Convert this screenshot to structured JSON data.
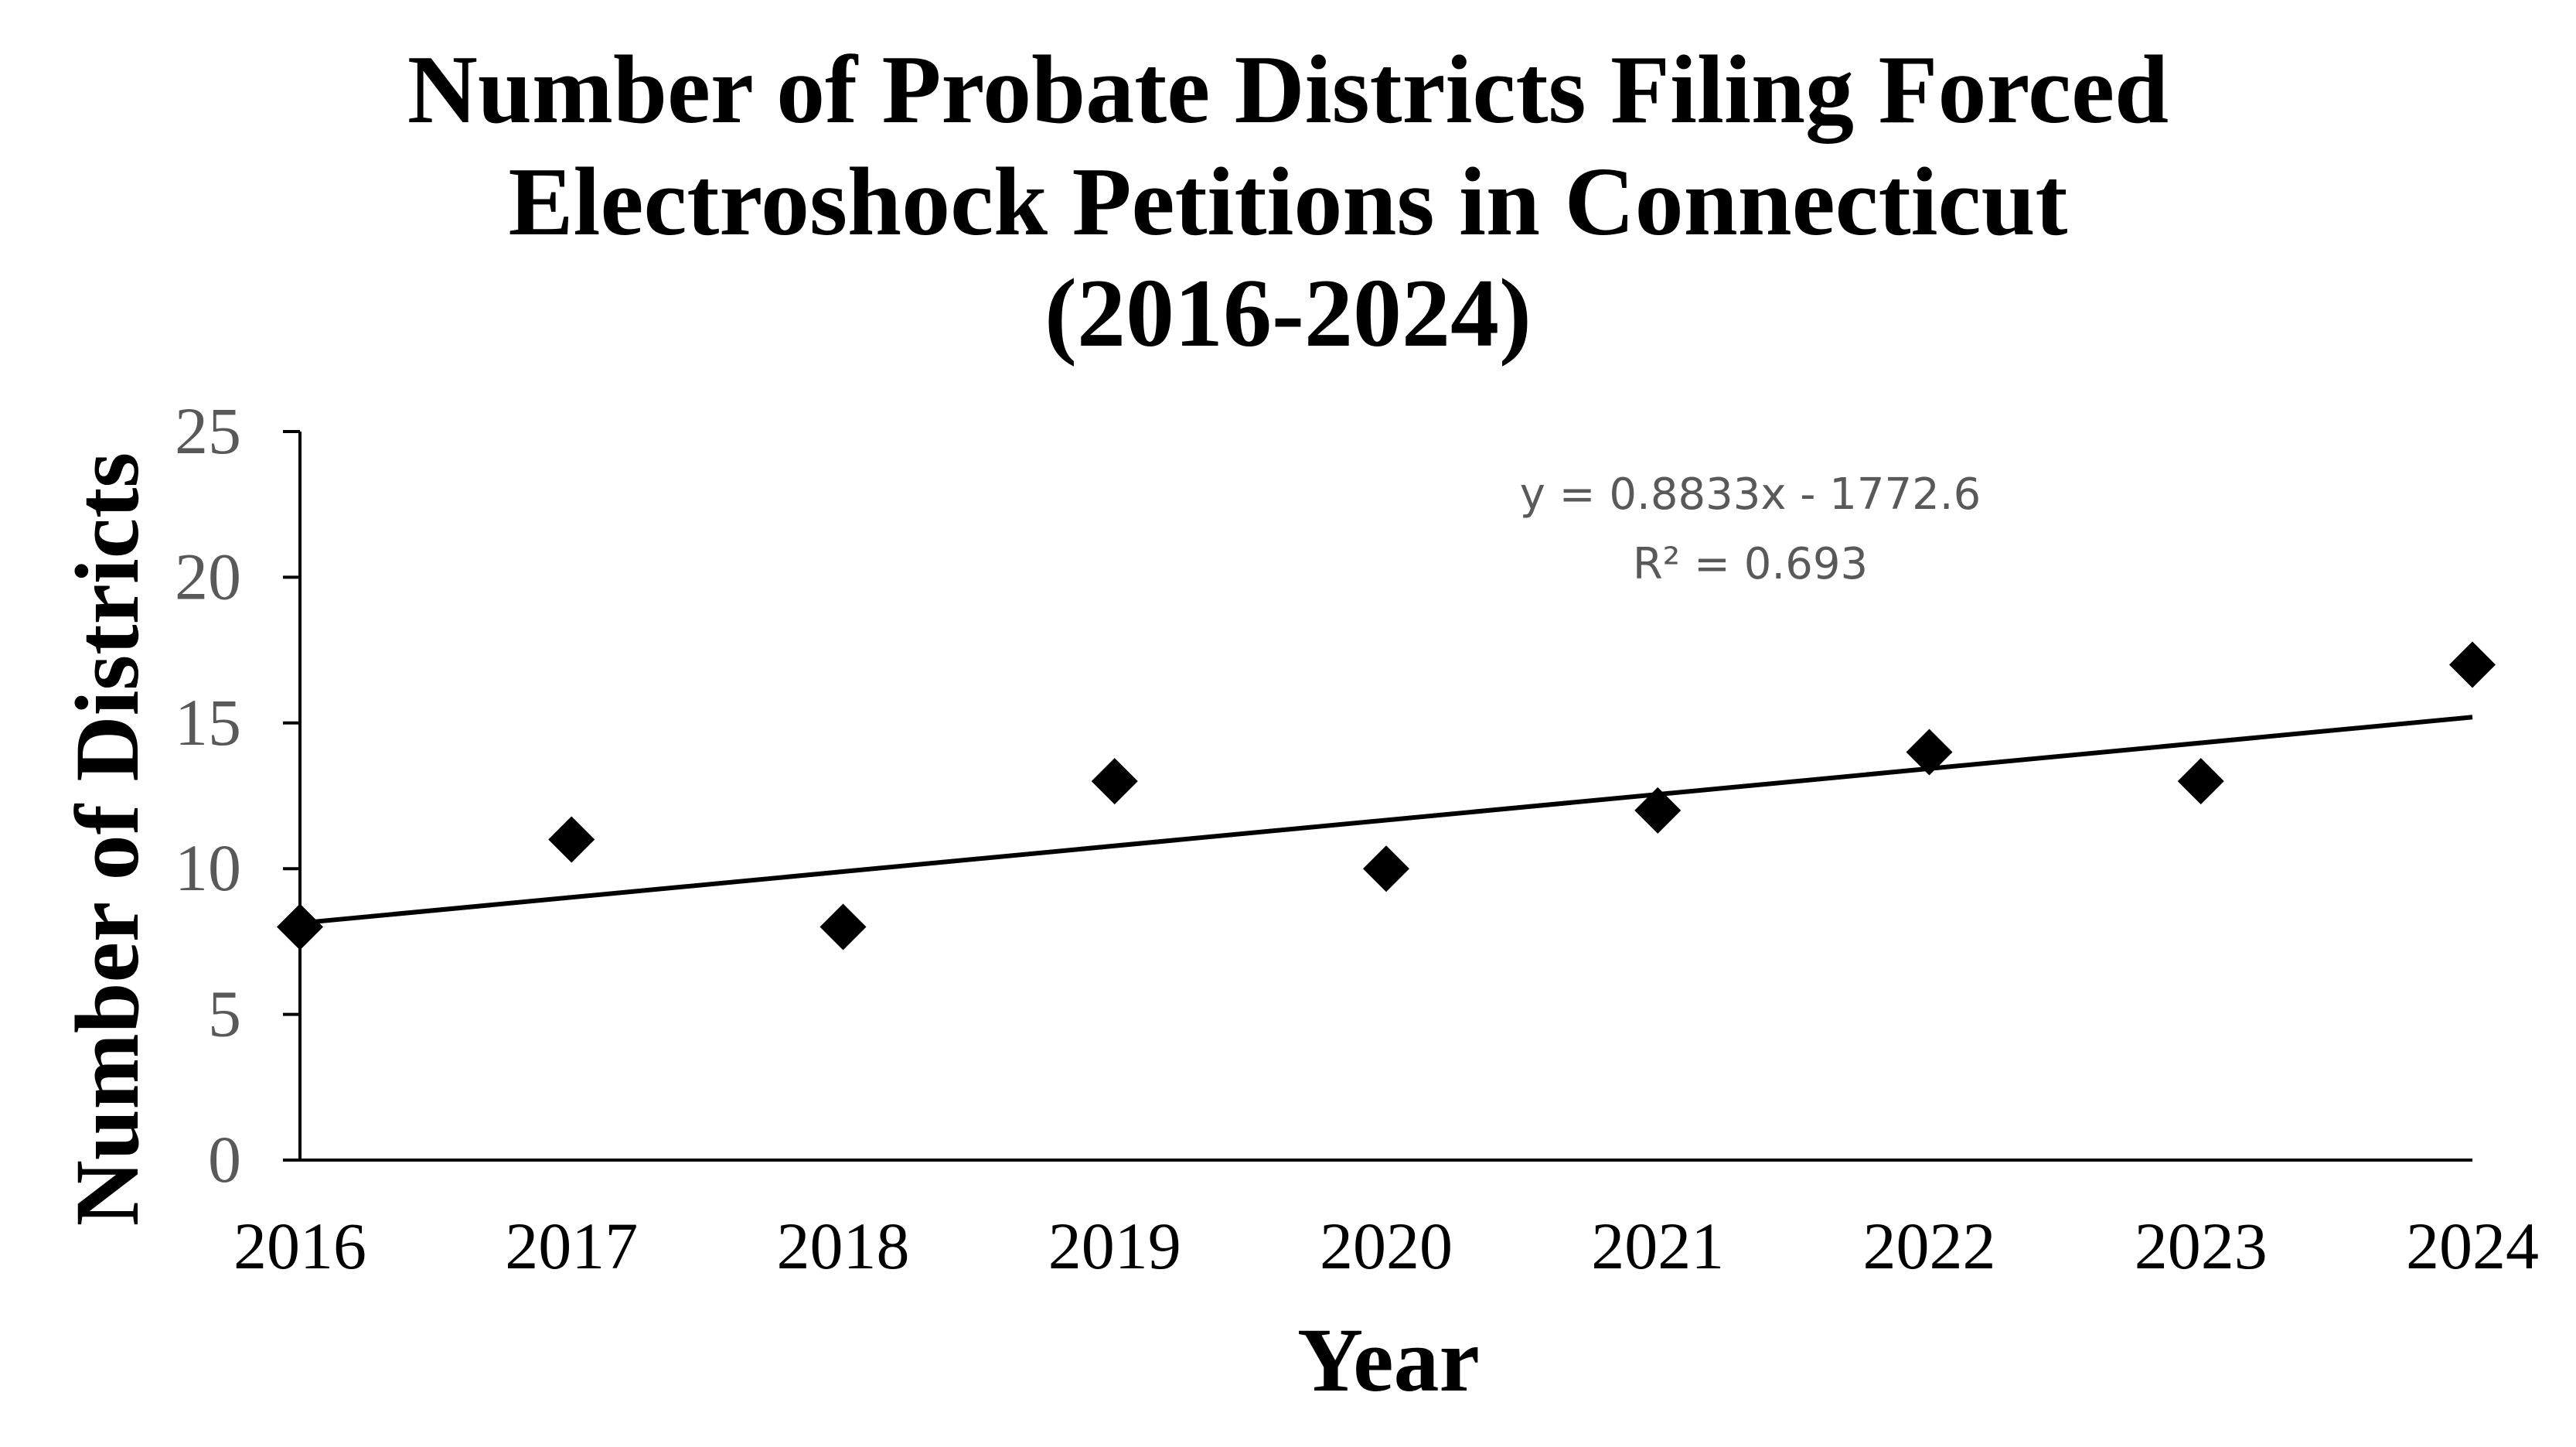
{
  "chart_data": {
    "type": "scatter",
    "title": [
      "Number of Probate Districts Filing Forced",
      "Electroshock Petitions in Connecticut",
      "(2016-2024)"
    ],
    "xlabel": "Year",
    "ylabel": "Number of Districts",
    "x": [
      2016,
      2017,
      2018,
      2019,
      2020,
      2021,
      2022,
      2023,
      2024
    ],
    "y": [
      8,
      11,
      8,
      13,
      10,
      12,
      14,
      13,
      17
    ],
    "xlim": [
      2016,
      2024
    ],
    "ylim": [
      0,
      25
    ],
    "x_ticks": [
      "2016",
      "2017",
      "2018",
      "2019",
      "2020",
      "2021",
      "2022",
      "2023",
      "2024"
    ],
    "y_ticks": [
      "0",
      "5",
      "10",
      "15",
      "20",
      "25"
    ],
    "marker": "diamond",
    "grid": false,
    "legend": "none",
    "trendline": {
      "type": "linear",
      "slope": 0.8833,
      "intercept": -1772.6,
      "equation": "y = 0.8833x - 1772.6",
      "r_squared": "R² = 0.693"
    },
    "colors": {
      "points": "#000000",
      "trendline": "#000000",
      "axes": "#000000",
      "y_tick_text": "#595959",
      "x_tick_text": "#000000",
      "trend_text": "#595959"
    }
  }
}
